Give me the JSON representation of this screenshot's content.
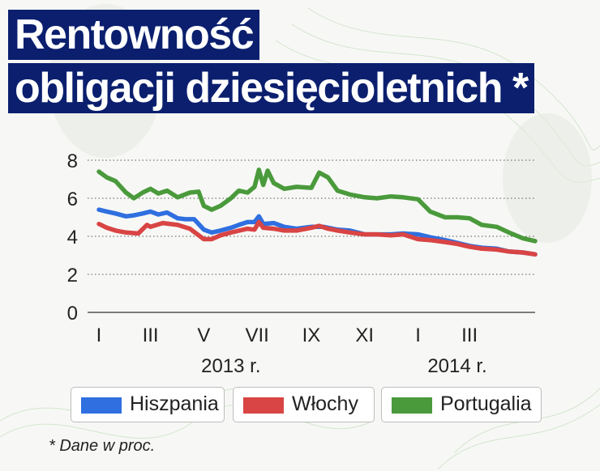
{
  "title": {
    "line1": "Rentowność",
    "line2": "obligacji dziesięcioletnich *"
  },
  "footnote": "* Dane w proc.",
  "colors": {
    "title_bg": "#0b1f6e",
    "title_text": "#ffffff",
    "Hiszpania": "#2f6fe0",
    "Włochy": "#d94444",
    "Portugalia": "#4a9a3c"
  },
  "chart_data": {
    "type": "line",
    "title": "Rentowność obligacji dziesięcioletnich *",
    "xlabel": "",
    "ylabel": "",
    "ylim": [
      0,
      8
    ],
    "yticks": [
      0,
      2,
      4,
      6,
      8
    ],
    "grid": "horizontal dotted",
    "x_range": [
      "2013-01-01",
      "2014-05-15"
    ],
    "xtick_labels": [
      {
        "label": "I",
        "date": "2013-01-01"
      },
      {
        "label": "III",
        "date": "2013-03-01"
      },
      {
        "label": "V",
        "date": "2013-05-01"
      },
      {
        "label": "VII",
        "date": "2013-07-01"
      },
      {
        "label": "IX",
        "date": "2013-09-01"
      },
      {
        "label": "XI",
        "date": "2013-11-01"
      },
      {
        "label": "I",
        "date": "2014-01-01"
      },
      {
        "label": "III",
        "date": "2014-03-01"
      }
    ],
    "year_labels": [
      {
        "label": "2013 r.",
        "date": "2013-06-01"
      },
      {
        "label": "2014 r.",
        "date": "2014-02-15"
      }
    ],
    "legend_position": "bottom",
    "series": [
      {
        "name": "Hiszpania",
        "points": [
          [
            "2013-01-01",
            5.4
          ],
          [
            "2013-01-10",
            5.3
          ],
          [
            "2013-01-20",
            5.2
          ],
          [
            "2013-02-01",
            5.05
          ],
          [
            "2013-02-10",
            5.1
          ],
          [
            "2013-02-20",
            5.2
          ],
          [
            "2013-03-01",
            5.3
          ],
          [
            "2013-03-10",
            5.15
          ],
          [
            "2013-03-20",
            5.25
          ],
          [
            "2013-04-01",
            4.95
          ],
          [
            "2013-04-10",
            4.9
          ],
          [
            "2013-04-20",
            4.9
          ],
          [
            "2013-05-01",
            4.35
          ],
          [
            "2013-05-10",
            4.2
          ],
          [
            "2013-05-20",
            4.3
          ],
          [
            "2013-06-01",
            4.45
          ],
          [
            "2013-06-10",
            4.6
          ],
          [
            "2013-06-20",
            4.75
          ],
          [
            "2013-06-28",
            4.75
          ],
          [
            "2013-07-03",
            5.05
          ],
          [
            "2013-07-08",
            4.65
          ],
          [
            "2013-07-20",
            4.7
          ],
          [
            "2013-08-01",
            4.5
          ],
          [
            "2013-08-15",
            4.4
          ],
          [
            "2013-09-01",
            4.5
          ],
          [
            "2013-09-15",
            4.5
          ],
          [
            "2013-10-01",
            4.35
          ],
          [
            "2013-10-15",
            4.3
          ],
          [
            "2013-11-01",
            4.1
          ],
          [
            "2013-11-15",
            4.1
          ],
          [
            "2013-12-01",
            4.1
          ],
          [
            "2013-12-15",
            4.15
          ],
          [
            "2014-01-01",
            4.1
          ],
          [
            "2014-01-15",
            3.95
          ],
          [
            "2014-02-01",
            3.8
          ],
          [
            "2014-02-15",
            3.65
          ],
          [
            "2014-03-01",
            3.5
          ],
          [
            "2014-03-15",
            3.4
          ],
          [
            "2014-04-01",
            3.35
          ],
          [
            "2014-04-15",
            3.2
          ],
          [
            "2014-05-01",
            3.15
          ],
          [
            "2014-05-15",
            3.05
          ]
        ]
      },
      {
        "name": "Włochy",
        "points": [
          [
            "2013-01-01",
            4.65
          ],
          [
            "2013-01-10",
            4.45
          ],
          [
            "2013-01-20",
            4.3
          ],
          [
            "2013-02-01",
            4.2
          ],
          [
            "2013-02-15",
            4.15
          ],
          [
            "2013-02-25",
            4.6
          ],
          [
            "2013-03-01",
            4.5
          ],
          [
            "2013-03-15",
            4.7
          ],
          [
            "2013-04-01",
            4.6
          ],
          [
            "2013-04-15",
            4.4
          ],
          [
            "2013-05-01",
            3.85
          ],
          [
            "2013-05-10",
            3.85
          ],
          [
            "2013-05-20",
            4.05
          ],
          [
            "2013-06-01",
            4.2
          ],
          [
            "2013-06-20",
            4.4
          ],
          [
            "2013-06-28",
            4.35
          ],
          [
            "2013-07-03",
            4.75
          ],
          [
            "2013-07-08",
            4.45
          ],
          [
            "2013-07-20",
            4.4
          ],
          [
            "2013-08-01",
            4.3
          ],
          [
            "2013-08-15",
            4.3
          ],
          [
            "2013-09-01",
            4.45
          ],
          [
            "2013-09-10",
            4.55
          ],
          [
            "2013-09-20",
            4.4
          ],
          [
            "2013-10-01",
            4.3
          ],
          [
            "2013-10-15",
            4.2
          ],
          [
            "2013-11-01",
            4.1
          ],
          [
            "2013-11-15",
            4.1
          ],
          [
            "2013-12-01",
            4.05
          ],
          [
            "2013-12-15",
            4.1
          ],
          [
            "2014-01-01",
            3.85
          ],
          [
            "2014-01-15",
            3.8
          ],
          [
            "2014-02-01",
            3.7
          ],
          [
            "2014-02-15",
            3.6
          ],
          [
            "2014-03-01",
            3.45
          ],
          [
            "2014-03-15",
            3.35
          ],
          [
            "2014-04-01",
            3.3
          ],
          [
            "2014-04-15",
            3.2
          ],
          [
            "2014-05-01",
            3.15
          ],
          [
            "2014-05-15",
            3.05
          ]
        ]
      },
      {
        "name": "Portugalia",
        "points": [
          [
            "2013-01-01",
            7.4
          ],
          [
            "2013-01-10",
            7.1
          ],
          [
            "2013-01-20",
            6.9
          ],
          [
            "2013-02-01",
            6.3
          ],
          [
            "2013-02-10",
            6.0
          ],
          [
            "2013-02-20",
            6.3
          ],
          [
            "2013-03-01",
            6.5
          ],
          [
            "2013-03-10",
            6.25
          ],
          [
            "2013-03-20",
            6.4
          ],
          [
            "2013-04-01",
            6.05
          ],
          [
            "2013-04-15",
            6.3
          ],
          [
            "2013-04-25",
            6.35
          ],
          [
            "2013-05-01",
            5.6
          ],
          [
            "2013-05-10",
            5.4
          ],
          [
            "2013-05-20",
            5.6
          ],
          [
            "2013-06-01",
            6.0
          ],
          [
            "2013-06-10",
            6.4
          ],
          [
            "2013-06-20",
            6.3
          ],
          [
            "2013-06-28",
            6.6
          ],
          [
            "2013-07-03",
            7.5
          ],
          [
            "2013-07-08",
            6.7
          ],
          [
            "2013-07-13",
            7.45
          ],
          [
            "2013-07-20",
            6.8
          ],
          [
            "2013-08-01",
            6.5
          ],
          [
            "2013-08-15",
            6.6
          ],
          [
            "2013-09-01",
            6.55
          ],
          [
            "2013-09-10",
            7.35
          ],
          [
            "2013-09-20",
            7.1
          ],
          [
            "2013-10-01",
            6.4
          ],
          [
            "2013-10-15",
            6.2
          ],
          [
            "2013-11-01",
            6.05
          ],
          [
            "2013-11-15",
            6.0
          ],
          [
            "2013-12-01",
            6.1
          ],
          [
            "2013-12-15",
            6.05
          ],
          [
            "2014-01-01",
            5.95
          ],
          [
            "2014-01-15",
            5.3
          ],
          [
            "2014-02-01",
            5.0
          ],
          [
            "2014-02-15",
            5.0
          ],
          [
            "2014-03-01",
            4.95
          ],
          [
            "2014-03-15",
            4.6
          ],
          [
            "2014-04-01",
            4.5
          ],
          [
            "2014-04-15",
            4.2
          ],
          [
            "2014-05-01",
            3.9
          ],
          [
            "2014-05-15",
            3.75
          ]
        ]
      }
    ]
  }
}
